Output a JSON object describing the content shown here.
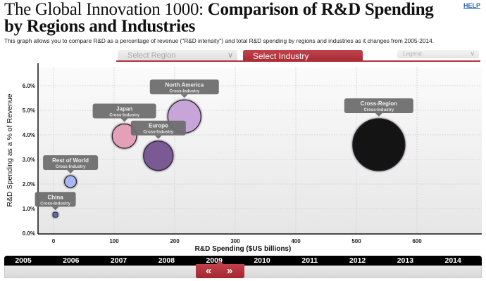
{
  "header": {
    "title_light": "The Global Innovation 1000: ",
    "title_bold_1": "Comparison of R&D Spending",
    "title_bold_2": "by Regions and Industries",
    "help_label": "HELP",
    "subtitle": "This graph allows you to compare R&D as a percentage of revenue (\"R&D intensity\") and total R&D spending by regions and industries as it changes from 2005-2014."
  },
  "controls": {
    "select_region_label": "Select Region",
    "select_industry_label": "Select Industry",
    "legend_label": "Legend",
    "chevron_icon": "chevron-down-icon"
  },
  "colors": {
    "accent_red": "#b2323c",
    "label_box": "#6e6e6e"
  },
  "chart_data": {
    "type": "scatter",
    "subtype": "bubble",
    "xlabel": "R&D Spending ($US billions)",
    "ylabel": "R&D Spending as a % of Revenue",
    "xlim": [
      -15,
      710
    ],
    "ylim": [
      0,
      6.5
    ],
    "x_ticks": [
      0,
      100,
      200,
      300,
      400,
      500,
      600
    ],
    "x_tick_labels": [
      "0",
      "100",
      "200",
      "300",
      "400",
      "500",
      "600"
    ],
    "y_ticks": [
      0,
      1,
      2,
      3,
      4,
      5,
      6
    ],
    "y_tick_labels": [
      "0.0%",
      "1.0%",
      "2.0%",
      "3.0%",
      "4.0%",
      "5.0%",
      "6.0%"
    ],
    "grid": true,
    "series": [
      {
        "name": "China",
        "sub": "Cross-Industry",
        "x": 3,
        "y": 0.75,
        "size": 3,
        "color": "#5a6fb0"
      },
      {
        "name": "Rest of World",
        "sub": "Cross-Industry",
        "x": 28,
        "y": 2.1,
        "size": 28,
        "color": "#a6b8f2"
      },
      {
        "name": "Japan",
        "sub": "Cross-Industry",
        "x": 117,
        "y": 3.95,
        "size": 117,
        "color": "#e3a0b8"
      },
      {
        "name": "Europe",
        "sub": "Cross-Industry",
        "x": 173,
        "y": 3.15,
        "size": 173,
        "color": "#7a5a94"
      },
      {
        "name": "North America",
        "sub": "Cross-Industry",
        "x": 216,
        "y": 4.75,
        "size": 216,
        "color": "#c8a5d8"
      },
      {
        "name": "Cross-Region",
        "sub": "Cross-Industry",
        "x": 537,
        "y": 3.6,
        "size": 537,
        "color": "#141414"
      }
    ]
  },
  "timeline": {
    "years": [
      "2005",
      "2006",
      "2007",
      "2008",
      "2009",
      "2010",
      "2011",
      "2012",
      "2013",
      "2014"
    ],
    "selected_year": "2009",
    "prev_icon": "«",
    "next_icon": "»"
  }
}
